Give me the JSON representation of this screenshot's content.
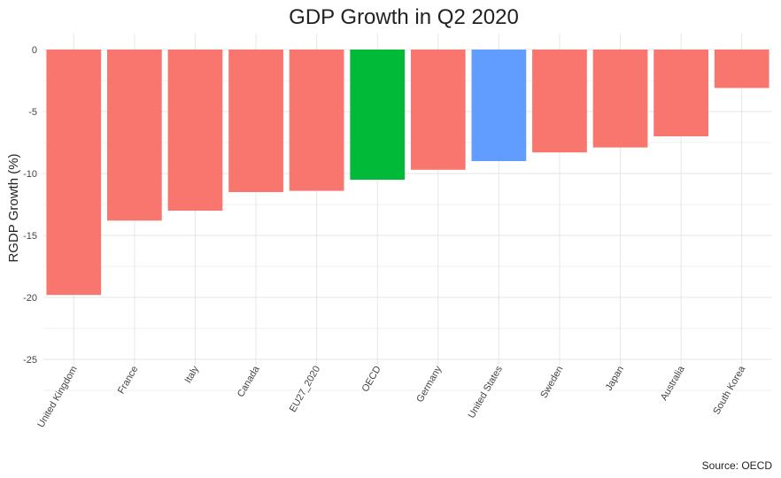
{
  "chart_data": {
    "type": "bar",
    "title": "GDP Growth in Q2 2020",
    "xlabel": "",
    "ylabel": "RGDP Growth (%)",
    "caption": "Source: OECD",
    "categories": [
      "United Kingdom",
      "France",
      "Italy",
      "Canada",
      "EU27_2020",
      "OECD",
      "Germany",
      "United States",
      "Sweden",
      "Japan",
      "Australia",
      "South Korea"
    ],
    "values": [
      -19.8,
      -13.8,
      -13.0,
      -11.5,
      -11.4,
      -10.5,
      -9.7,
      -9.0,
      -8.3,
      -7.9,
      -7.0,
      -3.1
    ],
    "colors": [
      "#F8766D",
      "#F8766D",
      "#F8766D",
      "#F8766D",
      "#F8766D",
      "#00BA38",
      "#F8766D",
      "#619CFF",
      "#F8766D",
      "#F8766D",
      "#F8766D",
      "#F8766D"
    ],
    "ylim": [
      -25,
      0
    ],
    "yticks": [
      0,
      -5,
      -10,
      -15,
      -20,
      -25
    ],
    "ytick_labels": [
      "0",
      "-5",
      "-10",
      "-15",
      "-20",
      "-25"
    ],
    "grid": true,
    "legend": "none"
  }
}
